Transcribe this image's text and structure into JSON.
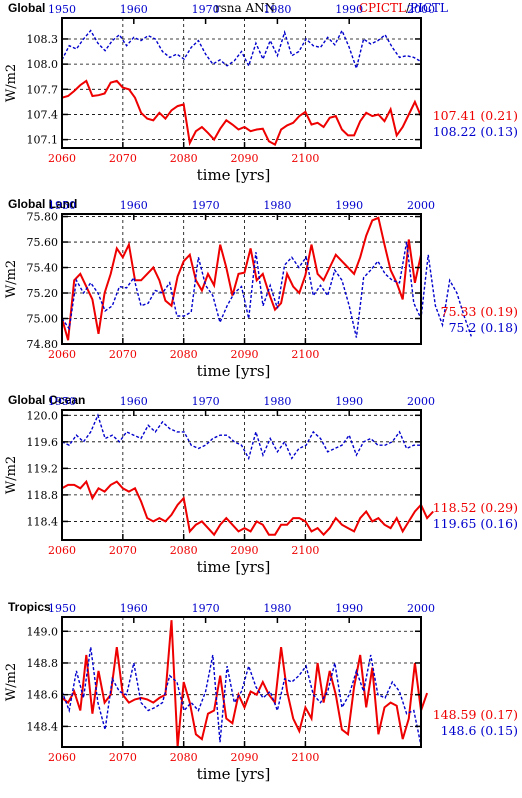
{
  "header": {
    "center_title": "rsna ANN",
    "experiment_a": "CPICTL",
    "slash": "/",
    "experiment_b": "PICTL"
  },
  "colors": {
    "series_a": "#ee0000",
    "series_b": "#0000cc",
    "axis": "#000000",
    "grid": "#000000"
  },
  "chart_data": [
    {
      "type": "line",
      "title": "Global",
      "ylabel": "W/m2",
      "xlabel": "time [yrs]",
      "grid": "dashed",
      "ylim": [
        107.0,
        108.55
      ],
      "yticks": [
        "108.3",
        "108.0",
        "107.7",
        "107.4",
        "107.1"
      ],
      "ytick_values": [
        108.3,
        108.0,
        107.7,
        107.4,
        107.1
      ],
      "x_bottom": {
        "range": [
          2060,
          2119
        ],
        "ticks": [
          "2060",
          "2070",
          "2080",
          "2090",
          "2100"
        ]
      },
      "x_top": {
        "range": [
          1950,
          2000
        ],
        "ticks": [
          "1950",
          "1960",
          "1970",
          "1980",
          "1990",
          "2000"
        ]
      },
      "series": [
        {
          "color": "#ee0000",
          "axis": "bottom",
          "style": "solid",
          "x_start": 2060,
          "values": [
            107.6,
            107.62,
            107.68,
            107.75,
            107.8,
            107.62,
            107.63,
            107.65,
            107.78,
            107.8,
            107.72,
            107.7,
            107.6,
            107.42,
            107.35,
            107.33,
            107.42,
            107.35,
            107.45,
            107.5,
            107.52,
            107.06,
            107.2,
            107.25,
            107.18,
            107.1,
            107.23,
            107.33,
            107.28,
            107.22,
            107.25,
            107.2,
            107.22,
            107.23,
            107.08,
            107.04,
            107.22,
            107.27,
            107.3,
            107.38,
            107.43,
            107.28,
            107.3,
            107.25,
            107.36,
            107.38,
            107.22,
            107.15,
            107.15,
            107.32,
            107.42,
            107.38,
            107.4,
            107.32,
            107.46,
            107.15,
            107.25,
            107.4,
            107.55,
            107.38
          ],
          "summary": "107.41 (0.21)"
        },
        {
          "color": "#0000cc",
          "axis": "top",
          "style": "dashed",
          "x_start": 1950,
          "values": [
            108.05,
            108.22,
            108.18,
            108.3,
            108.4,
            108.25,
            108.16,
            108.28,
            108.35,
            108.22,
            108.32,
            108.28,
            108.34,
            108.3,
            108.15,
            108.08,
            108.12,
            108.06,
            108.2,
            108.28,
            108.12,
            108.0,
            108.05,
            107.98,
            108.04,
            108.15,
            107.98,
            108.25,
            108.06,
            108.28,
            108.1,
            108.38,
            108.1,
            108.15,
            108.3,
            108.22,
            108.2,
            108.32,
            108.23,
            108.4,
            108.2,
            107.95,
            108.3,
            108.24,
            108.28,
            108.35,
            108.2,
            108.08,
            108.1,
            108.08,
            108.03
          ],
          "summary": "108.22 (0.13)"
        }
      ]
    },
    {
      "type": "line",
      "title": "Global Land",
      "ylabel": "W/m2",
      "xlabel": "time [yrs]",
      "grid": "dashed",
      "ylim": [
        74.8,
        75.82
      ],
      "yticks": [
        "75.80",
        "75.60",
        "75.40",
        "75.20",
        "75.00",
        "74.80"
      ],
      "ytick_values": [
        75.8,
        75.6,
        75.4,
        75.2,
        75.0,
        74.8
      ],
      "x_bottom": {
        "range": [
          2060,
          2119
        ],
        "ticks": [
          "2060",
          "2070",
          "2080",
          "2090",
          "2100"
        ]
      },
      "x_top": {
        "range": [
          1950,
          2000
        ],
        "ticks": [
          "1950",
          "1960",
          "1970",
          "1980",
          "1990",
          "2000"
        ]
      },
      "series": [
        {
          "color": "#ee0000",
          "axis": "bottom",
          "style": "solid",
          "x_start": 2060,
          "values": [
            75.0,
            74.83,
            75.3,
            75.35,
            75.25,
            75.15,
            74.88,
            75.2,
            75.35,
            75.55,
            75.48,
            75.58,
            75.3,
            75.3,
            75.35,
            75.4,
            75.3,
            75.14,
            75.1,
            75.33,
            75.45,
            75.5,
            75.3,
            75.22,
            75.35,
            75.26,
            75.58,
            75.4,
            75.18,
            75.35,
            75.36,
            75.55,
            75.3,
            75.35,
            75.2,
            75.07,
            75.12,
            75.35,
            75.25,
            75.2,
            75.34,
            75.58,
            75.35,
            75.3,
            75.4,
            75.5,
            75.45,
            75.4,
            75.35,
            75.48,
            75.65,
            75.77,
            75.79,
            75.58,
            75.38,
            75.28,
            75.15,
            75.62,
            75.28,
            75.5
          ],
          "summary": "75.33 (0.19)"
        },
        {
          "color": "#0000cc",
          "axis": "top",
          "style": "dashed",
          "x_start": 1950,
          "values": [
            75.0,
            74.92,
            75.3,
            75.2,
            75.28,
            75.2,
            75.06,
            75.1,
            75.25,
            75.24,
            75.32,
            75.1,
            75.12,
            75.22,
            75.2,
            75.28,
            75.02,
            75.02,
            75.05,
            75.48,
            75.26,
            75.18,
            74.97,
            75.1,
            75.2,
            75.25,
            75.0,
            75.52,
            75.1,
            75.26,
            75.08,
            75.42,
            75.48,
            75.4,
            75.48,
            75.18,
            75.26,
            75.18,
            75.38,
            75.3,
            75.1,
            74.85,
            75.32,
            75.38,
            75.45,
            75.35,
            75.3,
            75.28,
            75.6,
            75.12,
            75.0,
            75.5,
            75.1,
            74.95,
            75.3,
            75.2,
            75.02,
            74.86
          ],
          "summary": "75.2 (0.18)"
        }
      ]
    },
    {
      "type": "line",
      "title": "Global Ocean",
      "ylabel": "W/m2",
      "xlabel": "time [yrs]",
      "grid": "dashed",
      "ylim": [
        118.12,
        120.08
      ],
      "yticks": [
        "120.0",
        "119.6",
        "119.2",
        "118.8",
        "118.4"
      ],
      "ytick_values": [
        120.0,
        119.6,
        119.2,
        118.8,
        118.4
      ],
      "x_bottom": {
        "range": [
          2060,
          2119
        ],
        "ticks": [
          "2060",
          "2070",
          "2080",
          "2090",
          "2100"
        ]
      },
      "x_top": {
        "range": [
          1950,
          2000
        ],
        "ticks": [
          "1950",
          "1960",
          "1970",
          "1980",
          "1990",
          "2000"
        ]
      },
      "series": [
        {
          "color": "#ee0000",
          "axis": "bottom",
          "style": "solid",
          "x_start": 2060,
          "values": [
            118.9,
            118.95,
            118.95,
            118.9,
            119.0,
            118.75,
            118.9,
            118.85,
            118.95,
            119.0,
            118.9,
            118.85,
            118.9,
            118.7,
            118.45,
            118.4,
            118.45,
            118.4,
            118.5,
            118.65,
            118.75,
            118.25,
            118.35,
            118.4,
            118.3,
            118.2,
            118.35,
            118.45,
            118.35,
            118.25,
            118.3,
            118.25,
            118.4,
            118.35,
            118.2,
            118.2,
            118.35,
            118.35,
            118.45,
            118.45,
            118.4,
            118.25,
            118.3,
            118.2,
            118.3,
            118.45,
            118.35,
            118.3,
            118.25,
            118.45,
            118.55,
            118.4,
            118.45,
            118.35,
            118.3,
            118.45,
            118.25,
            118.4,
            118.55,
            118.65,
            118.45,
            118.55
          ],
          "summary": "118.52 (0.29)"
        },
        {
          "color": "#0000cc",
          "axis": "top",
          "style": "dashed",
          "x_start": 1950,
          "values": [
            119.6,
            119.55,
            119.7,
            119.6,
            119.75,
            120.0,
            119.65,
            119.7,
            119.6,
            119.75,
            119.7,
            119.65,
            119.85,
            119.75,
            119.9,
            119.8,
            119.75,
            119.75,
            119.55,
            119.5,
            119.55,
            119.65,
            119.7,
            119.7,
            119.6,
            119.55,
            119.35,
            119.75,
            119.4,
            119.65,
            119.45,
            119.6,
            119.35,
            119.5,
            119.55,
            119.75,
            119.65,
            119.45,
            119.5,
            119.55,
            119.7,
            119.4,
            119.6,
            119.65,
            119.55,
            119.55,
            119.6,
            119.75,
            119.5,
            119.55,
            119.55
          ],
          "summary": "119.65 (0.16)"
        }
      ]
    },
    {
      "type": "line",
      "title": "Tropics",
      "ylabel": "W/m2",
      "xlabel": "time [yrs]",
      "grid": "dashed",
      "ylim": [
        148.27,
        149.09
      ],
      "yticks": [
        "149.0",
        "148.8",
        "148.6",
        "148.4"
      ],
      "ytick_values": [
        149.0,
        148.8,
        148.6,
        148.4
      ],
      "x_bottom": {
        "range": [
          2060,
          2119
        ],
        "ticks": [
          "2060",
          "2070",
          "2080",
          "2090",
          "2100"
        ]
      },
      "x_top": {
        "range": [
          1950,
          2000
        ],
        "ticks": [
          "1950",
          "1960",
          "1970",
          "1980",
          "1990",
          "2000"
        ]
      },
      "series": [
        {
          "color": "#ee0000",
          "axis": "bottom",
          "style": "solid",
          "x_start": 2060,
          "values": [
            148.58,
            148.55,
            148.62,
            148.5,
            148.85,
            148.48,
            148.75,
            148.55,
            148.6,
            148.9,
            148.6,
            148.55,
            148.57,
            148.58,
            148.57,
            148.55,
            148.58,
            148.6,
            149.07,
            148.27,
            148.68,
            148.55,
            148.35,
            148.32,
            148.48,
            148.5,
            148.72,
            148.45,
            148.42,
            148.6,
            148.52,
            148.62,
            148.6,
            148.68,
            148.6,
            148.55,
            148.9,
            148.62,
            148.45,
            148.37,
            148.52,
            148.45,
            148.8,
            148.55,
            148.75,
            148.6,
            148.38,
            148.35,
            148.65,
            148.85,
            148.52,
            148.77,
            148.35,
            148.52,
            148.55,
            148.53,
            148.32,
            148.45,
            148.8,
            148.5,
            148.61
          ],
          "summary": "148.59 (0.17)"
        },
        {
          "color": "#0000cc",
          "axis": "top",
          "style": "dashed",
          "x_start": 1950,
          "values": [
            148.62,
            148.5,
            148.75,
            148.58,
            148.9,
            148.55,
            148.38,
            148.7,
            148.62,
            148.6,
            148.8,
            148.55,
            148.5,
            148.52,
            148.55,
            148.72,
            148.68,
            148.5,
            148.55,
            148.5,
            148.62,
            148.85,
            148.3,
            148.78,
            148.55,
            148.62,
            148.78,
            148.65,
            148.58,
            148.62,
            148.5,
            148.7,
            148.68,
            148.72,
            148.78,
            148.6,
            148.55,
            148.62,
            148.8,
            148.52,
            148.6,
            148.75,
            148.62,
            148.85,
            148.6,
            148.58,
            148.68,
            148.62,
            148.48,
            148.5,
            148.28
          ],
          "summary": "148.6 (0.15)"
        }
      ]
    }
  ]
}
